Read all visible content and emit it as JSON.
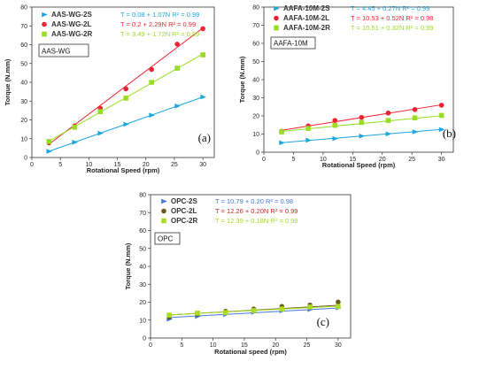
{
  "chart_data": [
    {
      "type": "scatter",
      "panel_letter": "(a)",
      "box_label": "AAS-WG",
      "xlabel": "Rotational Speed (rpm)",
      "ylabel": "Torque (N.mm)",
      "xlim": [
        0,
        32
      ],
      "ylim": [
        0,
        80
      ],
      "xticks": [
        0,
        5,
        10,
        15,
        20,
        25,
        30
      ],
      "yticks": [
        0,
        10,
        20,
        30,
        40,
        50,
        60,
        70,
        80
      ],
      "x": [
        3,
        7.5,
        12,
        16.5,
        21,
        25.5,
        30
      ],
      "legend_position": "top-left",
      "series": [
        {
          "name": "AAS-WG-2S",
          "equation": "T = 0.08 + 1.07N",
          "r2": "R² = 0.99",
          "marker": "triangle-right",
          "color": "#1aa7e0",
          "eqcolor": "#1aa7e0",
          "values": [
            3.3,
            8.1,
            12.9,
            17.7,
            22.5,
            27.4,
            32.2
          ],
          "fit": [
            0.08,
            1.07
          ]
        },
        {
          "name": "AAS-WG-2L",
          "equation": "T = 0.2 + 2.29N",
          "r2": "R² = 0.99",
          "marker": "circle",
          "color": "#ee2233",
          "eqcolor": "#ee2233",
          "values": [
            7.8,
            16.8,
            26.2,
            36.5,
            46.8,
            60.3,
            68.5
          ],
          "fit": [
            0.2,
            2.29
          ]
        },
        {
          "name": "AAS-WG-2R",
          "equation": "T = 3.49 + 1.72N",
          "r2": "R² = 0.99",
          "marker": "square",
          "color": "#99dd22",
          "eqcolor": "#99dd22",
          "values": [
            8.5,
            16.1,
            24.4,
            31.6,
            40.0,
            47.5,
            54.6
          ],
          "fit": [
            3.49,
            1.72
          ]
        }
      ]
    },
    {
      "type": "scatter",
      "panel_letter": "(b)",
      "box_label": "AAFA-10M",
      "xlabel": "Rotational Speed (rpm)",
      "ylabel": "Torque (N.mm)",
      "xlim": [
        0,
        32
      ],
      "ylim": [
        0,
        80
      ],
      "xticks": [
        0,
        5,
        10,
        15,
        20,
        25,
        30
      ],
      "yticks": [
        0,
        10,
        20,
        30,
        40,
        50,
        60,
        70,
        80
      ],
      "x": [
        3,
        7.5,
        12,
        16.5,
        21,
        25.5,
        30
      ],
      "legend_position": "top-left",
      "series": [
        {
          "name": "AAFA-10M-2S",
          "equation": "T = 4.45 + 0.27N",
          "r2": "R² = 0.99",
          "marker": "triangle-right",
          "color": "#1aa7e0",
          "eqcolor": "#1aa7e0",
          "values": [
            5.2,
            6.6,
            7.5,
            8.9,
            10.1,
            11.2,
            12.5
          ],
          "fit": [
            4.45,
            0.27
          ]
        },
        {
          "name": "AAFA-10M-2L",
          "equation": "T = 10.53 + 0.52N",
          "r2": "R² = 0.98",
          "marker": "circle",
          "color": "#ee2233",
          "eqcolor": "#ee2233",
          "values": [
            11.5,
            14.5,
            17.5,
            19.2,
            21.6,
            23.5,
            25.9
          ],
          "fit": [
            10.53,
            0.52
          ]
        },
        {
          "name": "AAFA-10M-2R",
          "equation": "T = 10.51 + 0.32N",
          "r2": "R² = 0.99",
          "marker": "square",
          "color": "#99dd22",
          "eqcolor": "#99dd22",
          "values": [
            11.2,
            13.1,
            14.8,
            16.4,
            17.5,
            18.9,
            20.3
          ],
          "fit": [
            10.51,
            0.32
          ]
        }
      ]
    },
    {
      "type": "scatter",
      "panel_letter": "(c)",
      "box_label": "OPC",
      "xlabel": "Rotational speed (rpm)",
      "ylabel": "Torque (N.mm)",
      "xlim": [
        0,
        32
      ],
      "ylim": [
        0,
        80
      ],
      "xticks": [
        0,
        5,
        10,
        15,
        20,
        25,
        30
      ],
      "yticks": [
        0,
        10,
        20,
        30,
        40,
        50,
        60,
        70,
        80
      ],
      "x": [
        3,
        7.5,
        12,
        16.5,
        21,
        25.5,
        30
      ],
      "legend_position": "top-left",
      "series": [
        {
          "name": "OPC-2S",
          "equation": "T = 10.79 + 0.20",
          "r2": "R² = 0.98",
          "marker": "triangle-right",
          "color": "#4477dd",
          "eqcolor": "#4477dd",
          "values": [
            10.6,
            12.1,
            13.2,
            14.4,
            15.2,
            15.9,
            16.8
          ],
          "fit": [
            10.79,
            0.2
          ]
        },
        {
          "name": "OPC-2L",
          "equation": "T = 12.26 + 0.20N",
          "r2": "R² = 0.99",
          "marker": "circle",
          "color": "#6b5a1e",
          "eqcolor": "#cc2222",
          "values": [
            11.6,
            13.2,
            14.9,
            16.2,
            17.6,
            18.4,
            20.1
          ],
          "fit": [
            12.26,
            0.2
          ]
        },
        {
          "name": "OPC-2R",
          "equation": "T = 12.39 + 0.18N",
          "r2": "R² = 0.98",
          "marker": "square",
          "color": "#aadd22",
          "eqcolor": "#aadd22",
          "values": [
            12.8,
            13.9,
            14.2,
            15.3,
            16.2,
            17.3,
            17.6
          ],
          "fit": [
            12.39,
            0.18
          ]
        }
      ]
    }
  ]
}
